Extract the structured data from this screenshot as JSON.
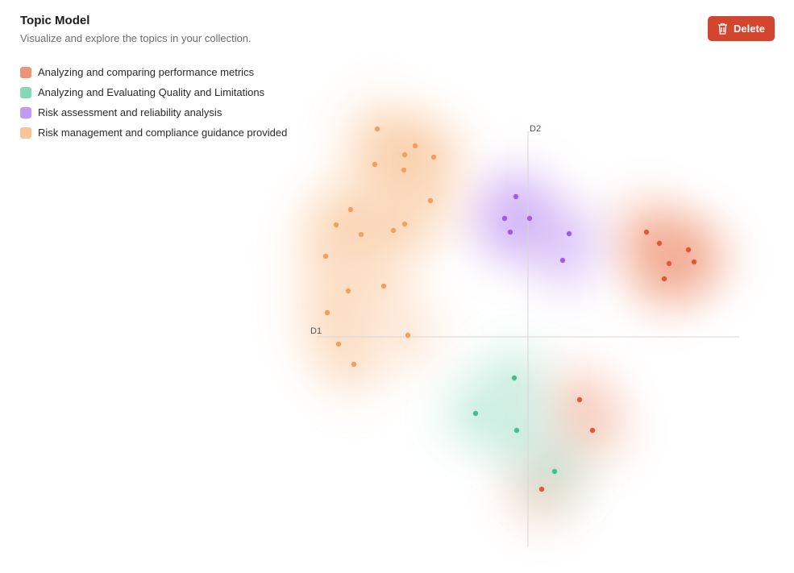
{
  "header": {
    "title": "Topic Model",
    "subtitle": "Visualize and explore the topics in your collection.",
    "delete_label": "Delete",
    "delete_icon": "trash-icon",
    "delete_color": "#d2452f"
  },
  "chart_data": {
    "type": "scatter",
    "xlabel": "D1",
    "ylabel": "D2",
    "grid": false,
    "legend": "top-left",
    "density_contours": true,
    "series": [
      {
        "name": "Analyzing and comparing performance metrics",
        "color": "#ec9477",
        "point_color": "#e2583a",
        "points": [
          [
            1.47,
            1.3
          ],
          [
            1.63,
            1.16
          ],
          [
            1.99,
            1.08
          ],
          [
            1.75,
            0.91
          ],
          [
            2.06,
            0.93
          ],
          [
            1.69,
            0.72
          ],
          [
            0.64,
            -0.78
          ],
          [
            0.8,
            -1.16
          ],
          [
            0.17,
            -1.89
          ]
        ]
      },
      {
        "name": "Analyzing and Evaluating Quality and Limitations",
        "color": "#86d9b8",
        "point_color": "#3fc08e",
        "points": [
          [
            -0.17,
            -0.51
          ],
          [
            -0.65,
            -0.95
          ],
          [
            -0.14,
            -1.16
          ],
          [
            0.33,
            -1.67
          ]
        ]
      },
      {
        "name": "Risk assessment and reliability analysis",
        "color": "#c09af5",
        "point_color": "#a25ae8",
        "points": [
          [
            -0.15,
            1.74
          ],
          [
            -0.29,
            1.47
          ],
          [
            0.02,
            1.47
          ],
          [
            -0.22,
            1.3
          ],
          [
            0.51,
            1.28
          ],
          [
            0.43,
            0.95
          ]
        ]
      },
      {
        "name": "Risk management and compliance guidance provided",
        "color": "#f8c596",
        "point_color": "#f3a05c",
        "points": [
          [
            -1.87,
            2.58
          ],
          [
            -1.4,
            2.37
          ],
          [
            -1.53,
            2.26
          ],
          [
            -1.17,
            2.23
          ],
          [
            -1.9,
            2.14
          ],
          [
            -1.54,
            2.07
          ],
          [
            -1.21,
            1.69
          ],
          [
            -2.2,
            1.58
          ],
          [
            -2.38,
            1.39
          ],
          [
            -1.53,
            1.4
          ],
          [
            -1.67,
            1.32
          ],
          [
            -2.07,
            1.27
          ],
          [
            -2.51,
            1.0
          ],
          [
            -1.79,
            0.63
          ],
          [
            -2.23,
            0.57
          ],
          [
            -2.49,
            0.3
          ],
          [
            -1.49,
            0.02
          ],
          [
            -2.35,
            -0.09
          ],
          [
            -2.16,
            -0.34
          ]
        ]
      }
    ]
  }
}
